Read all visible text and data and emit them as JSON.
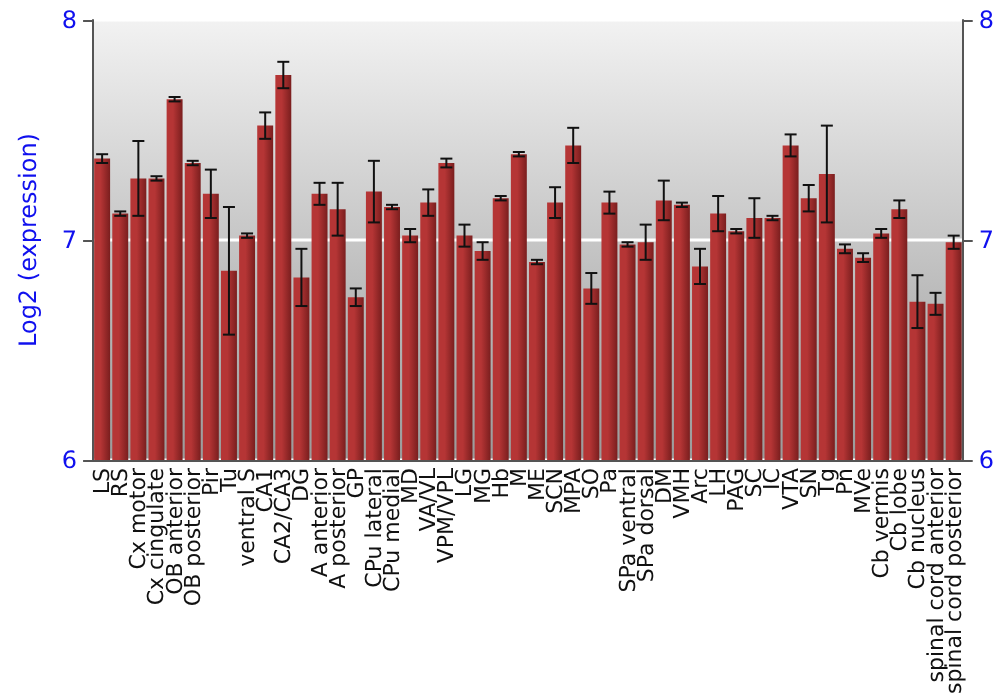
{
  "chart_data": {
    "type": "bar",
    "ylabel": "Log2 (expression)",
    "categories": [
      "LS",
      "RS",
      "Cx motor",
      "Cx cingulate",
      "OB anterior",
      "OB posterior",
      "Pir",
      "Tu",
      "ventral S",
      "CA1",
      "CA2/CA3",
      "DG",
      "A anterior",
      "A posterior",
      "GP",
      "CPu lateral",
      "CPu medial",
      "MD",
      "VA/VL",
      "VPM/VPL",
      "LG",
      "MG",
      "Hb",
      "M",
      "ME",
      "SCN",
      "MPA",
      "SO",
      "Pa",
      "SPa ventral",
      "SPa dorsal",
      "DM",
      "VMH",
      "Arc",
      "LH",
      "PAG",
      "SC",
      "IC",
      "VTA",
      "SN",
      "Tg",
      "Pn",
      "MVe",
      "Cb vermis",
      "Cb lobe",
      "Cb nucleus",
      "spinal cord anterior",
      "spinal cord posterior"
    ],
    "values": [
      7.37,
      7.12,
      7.28,
      7.28,
      7.64,
      7.35,
      7.21,
      6.86,
      7.02,
      7.52,
      7.75,
      6.83,
      7.21,
      7.14,
      6.74,
      7.22,
      7.15,
      7.02,
      7.17,
      7.35,
      7.02,
      6.95,
      7.19,
      7.39,
      6.9,
      7.17,
      7.43,
      6.78,
      7.17,
      6.98,
      6.99,
      7.18,
      7.16,
      6.88,
      7.12,
      7.04,
      7.1,
      7.1,
      7.43,
      7.19,
      7.3,
      6.96,
      6.92,
      7.03,
      7.14,
      6.72,
      6.71,
      6.99
    ],
    "errors": [
      0.02,
      0.01,
      0.17,
      0.01,
      0.01,
      0.01,
      0.11,
      0.29,
      0.01,
      0.06,
      0.06,
      0.13,
      0.05,
      0.12,
      0.04,
      0.14,
      0.01,
      0.03,
      0.06,
      0.02,
      0.05,
      0.04,
      0.01,
      0.01,
      0.01,
      0.07,
      0.08,
      0.07,
      0.05,
      0.01,
      0.08,
      0.09,
      0.01,
      0.08,
      0.08,
      0.01,
      0.09,
      0.01,
      0.05,
      0.06,
      0.22,
      0.02,
      0.02,
      0.02,
      0.04,
      0.12,
      0.05,
      0.03
    ],
    "color": "#b53535",
    "ylim": [
      6,
      8
    ],
    "yticks": [
      6,
      7,
      8
    ],
    "y2lim": [
      6,
      8
    ],
    "y2ticks": [
      6,
      7,
      8
    ],
    "grid": "y"
  }
}
